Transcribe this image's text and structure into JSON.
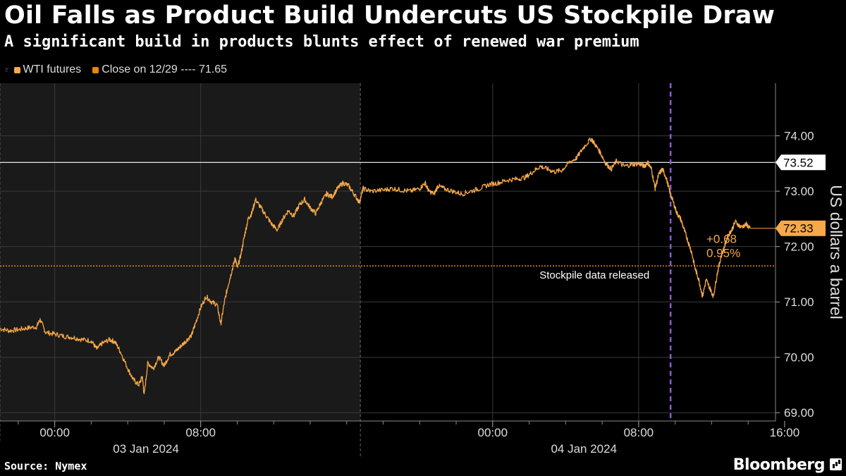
{
  "title": "Oil Falls as Product Build Undercuts US Stockpile Draw",
  "subtitle": "A significant build in products blunts effect of renewed war premium",
  "legend": {
    "series_label": "WTI futures",
    "close_label": "Close on 12/29 ---- 71.65",
    "series_color": "#f6a84a",
    "close_color": "#e8850f"
  },
  "source": "Source: Nymex",
  "brand": "Bloomberg",
  "chart_data": {
    "type": "line",
    "title": "Oil Falls as Product Build Undercuts US Stockpile Draw",
    "ylabel": "US dollars a barrel",
    "ylim": [
      68.85,
      74.95
    ],
    "x_hours_range": [
      -3,
      39.5
    ],
    "y_ticks": [
      "69.00",
      "70.00",
      "71.00",
      "72.00",
      "73.00",
      "74.00"
    ],
    "x_ticks": [
      {
        "hour": 0,
        "label": "00:00"
      },
      {
        "hour": 8,
        "label": "08:00"
      },
      {
        "hour": 24,
        "label": "00:00"
      },
      {
        "hour": 32,
        "label": "08:00"
      },
      {
        "hour": 40,
        "label": "16:00"
      }
    ],
    "minor_x_ticks": [
      -2,
      2,
      4,
      6,
      10,
      12,
      14,
      16,
      18,
      20,
      22,
      26,
      28,
      30,
      34,
      36,
      38
    ],
    "date_labels": [
      {
        "hour": 5,
        "label": "03 Jan 2024"
      },
      {
        "hour": 29,
        "label": "04 Jan 2024"
      }
    ],
    "shaded_session": [
      -3,
      16.75
    ],
    "series": [
      {
        "name": "WTI futures",
        "points": [
          [
            -3,
            70.52
          ],
          [
            -2.5,
            70.48
          ],
          [
            -2,
            70.5
          ],
          [
            -1.5,
            70.53
          ],
          [
            -1,
            70.55
          ],
          [
            -0.8,
            70.68
          ],
          [
            -0.5,
            70.45
          ],
          [
            0,
            70.42
          ],
          [
            0.5,
            70.38
          ],
          [
            1,
            70.36
          ],
          [
            1.5,
            70.32
          ],
          [
            2,
            70.3
          ],
          [
            2.3,
            70.15
          ],
          [
            2.6,
            70.25
          ],
          [
            3,
            70.32
          ],
          [
            3.3,
            70.28
          ],
          [
            3.6,
            70.1
          ],
          [
            4,
            69.8
          ],
          [
            4.3,
            69.6
          ],
          [
            4.6,
            69.5
          ],
          [
            4.8,
            69.65
          ],
          [
            4.9,
            69.32
          ],
          [
            5.1,
            69.9
          ],
          [
            5.4,
            69.8
          ],
          [
            5.7,
            70.0
          ],
          [
            6.0,
            69.85
          ],
          [
            6.3,
            70.05
          ],
          [
            6.6,
            70.1
          ],
          [
            6.9,
            70.2
          ],
          [
            7.2,
            70.3
          ],
          [
            7.5,
            70.4
          ],
          [
            7.7,
            70.6
          ],
          [
            8.0,
            70.9
          ],
          [
            8.3,
            71.1
          ],
          [
            8.6,
            71.0
          ],
          [
            8.9,
            70.95
          ],
          [
            9.1,
            70.6
          ],
          [
            9.3,
            71.0
          ],
          [
            9.5,
            71.3
          ],
          [
            9.7,
            71.55
          ],
          [
            9.9,
            71.8
          ],
          [
            10.0,
            71.6
          ],
          [
            10.2,
            71.85
          ],
          [
            10.4,
            72.2
          ],
          [
            10.6,
            72.5
          ],
          [
            10.8,
            72.6
          ],
          [
            11.0,
            72.85
          ],
          [
            11.3,
            72.7
          ],
          [
            11.6,
            72.55
          ],
          [
            11.9,
            72.4
          ],
          [
            12.2,
            72.3
          ],
          [
            12.5,
            72.5
          ],
          [
            12.8,
            72.65
          ],
          [
            13.1,
            72.55
          ],
          [
            13.4,
            72.75
          ],
          [
            13.7,
            72.85
          ],
          [
            14.0,
            72.7
          ],
          [
            14.3,
            72.6
          ],
          [
            14.6,
            72.8
          ],
          [
            14.9,
            72.95
          ],
          [
            15.2,
            72.9
          ],
          [
            15.5,
            73.05
          ],
          [
            15.8,
            73.15
          ],
          [
            16.1,
            73.1
          ],
          [
            16.4,
            72.95
          ],
          [
            16.7,
            72.8
          ],
          [
            16.9,
            73.05
          ],
          [
            17.3,
            73.0
          ],
          [
            18.0,
            73.02
          ],
          [
            18.5,
            73.05
          ],
          [
            19.0,
            73.02
          ],
          [
            19.5,
            73.0
          ],
          [
            20.0,
            73.05
          ],
          [
            20.3,
            73.15
          ],
          [
            20.5,
            73.0
          ],
          [
            20.8,
            72.95
          ],
          [
            21.0,
            73.1
          ],
          [
            21.3,
            73.05
          ],
          [
            21.8,
            73.0
          ],
          [
            22.3,
            72.95
          ],
          [
            22.8,
            73.0
          ],
          [
            23.3,
            73.05
          ],
          [
            23.8,
            73.12
          ],
          [
            24.3,
            73.15
          ],
          [
            24.8,
            73.2
          ],
          [
            25.3,
            73.22
          ],
          [
            25.8,
            73.25
          ],
          [
            26.2,
            73.35
          ],
          [
            26.6,
            73.45
          ],
          [
            27.0,
            73.4
          ],
          [
            27.4,
            73.35
          ],
          [
            27.8,
            73.38
          ],
          [
            28.2,
            73.52
          ],
          [
            28.6,
            73.6
          ],
          [
            29.0,
            73.8
          ],
          [
            29.4,
            73.95
          ],
          [
            29.6,
            73.85
          ],
          [
            29.9,
            73.7
          ],
          [
            30.2,
            73.5
          ],
          [
            30.5,
            73.4
          ],
          [
            30.8,
            73.55
          ],
          [
            31.2,
            73.45
          ],
          [
            31.6,
            73.48
          ],
          [
            32.0,
            73.5
          ],
          [
            32.3,
            73.45
          ],
          [
            32.5,
            73.52
          ],
          [
            32.7,
            73.4
          ],
          [
            32.9,
            73.05
          ],
          [
            33.1,
            73.3
          ],
          [
            33.3,
            73.4
          ],
          [
            33.5,
            73.25
          ],
          [
            33.7,
            73.0
          ],
          [
            33.9,
            72.8
          ],
          [
            34.1,
            72.6
          ],
          [
            34.3,
            72.5
          ],
          [
            34.5,
            72.3
          ],
          [
            34.7,
            72.1
          ],
          [
            34.9,
            71.9
          ],
          [
            35.1,
            71.6
          ],
          [
            35.3,
            71.4
          ],
          [
            35.5,
            71.1
          ],
          [
            35.7,
            71.4
          ],
          [
            35.9,
            71.25
          ],
          [
            36.1,
            71.1
          ],
          [
            36.3,
            71.5
          ],
          [
            36.5,
            71.8
          ],
          [
            36.7,
            72.0
          ],
          [
            36.9,
            72.2
          ],
          [
            37.1,
            72.3
          ],
          [
            37.3,
            72.45
          ],
          [
            37.6,
            72.35
          ],
          [
            37.9,
            72.4
          ],
          [
            38.1,
            72.33
          ]
        ]
      }
    ],
    "reference_lines": [
      {
        "value": 73.52,
        "label": "73.52",
        "color": "#ffffff"
      },
      {
        "value": 71.65,
        "label": "Close on 12/29",
        "color": "#e8850f"
      }
    ],
    "last_value": {
      "label": "72.33",
      "value": 72.33,
      "change": "+0.68",
      "change_pct": "0.95%"
    },
    "annotation": {
      "text": "Stockpile data released",
      "hour": 33.75
    }
  }
}
